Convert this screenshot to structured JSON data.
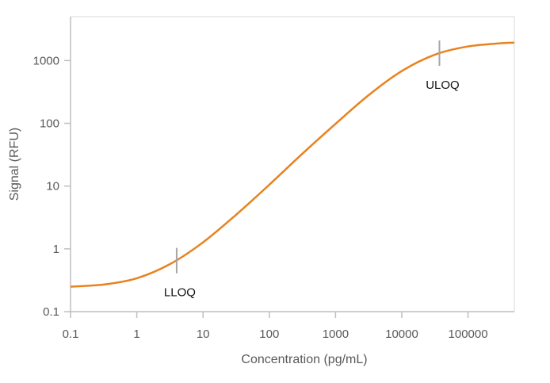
{
  "chart_data": {
    "type": "line",
    "title": "",
    "xlabel": "Concentration (pg/mL)",
    "ylabel": "Signal (RFU)",
    "xscale": "log",
    "yscale": "log",
    "xlim": [
      0.1,
      500000
    ],
    "ylim": [
      0.1,
      5000
    ],
    "xticks": [
      "0.1",
      "1",
      "10",
      "100",
      "1000",
      "10000",
      "100000"
    ],
    "yticks": [
      "0.1",
      "1",
      "10",
      "100",
      "1000"
    ],
    "grid": false,
    "legend": "none",
    "series": [
      {
        "color": "#E8821E",
        "x": [
          0.1,
          0.316,
          1,
          3.16,
          10,
          31.6,
          100,
          316,
          1000,
          3162,
          10000,
          31623,
          100000,
          316228,
          500000
        ],
        "y": [
          0.25,
          0.27,
          0.34,
          0.57,
          1.27,
          3.5,
          10.5,
          32.8,
          98,
          281,
          680,
          1240,
          1676,
          1885,
          1926
        ]
      }
    ],
    "annotations": [
      {
        "label": "LLOQ",
        "x": 4,
        "y": 0.65,
        "label_position": "below"
      },
      {
        "label": "ULOQ",
        "x": 37000,
        "y": 1310,
        "label_position": "below"
      }
    ],
    "colors": {
      "line": "#E8821E",
      "axis": "#BFBFBF",
      "marker": "#A6A6A6",
      "text": "#595959"
    }
  }
}
